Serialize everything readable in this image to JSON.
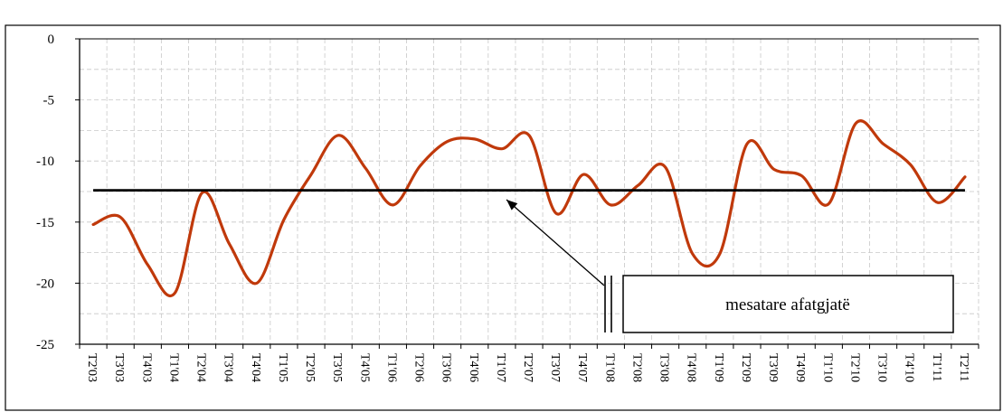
{
  "chart_data": {
    "type": "line",
    "title": "",
    "xlabel": "",
    "ylabel": "",
    "ylim": [
      -25,
      0
    ],
    "yticks": [
      0,
      -5,
      -10,
      -15,
      -20,
      -25
    ],
    "grid": true,
    "categories": [
      "T2'03",
      "T3'03",
      "T4'03",
      "T1'04",
      "T2'04",
      "T3'04",
      "T4'04",
      "T1'05",
      "T2'05",
      "T3'05",
      "T4'05",
      "T1'06",
      "T2'06",
      "T3'06",
      "T4'06",
      "T1'07",
      "T2'07",
      "T3'07",
      "T4'07",
      "T1'08",
      "T2'08",
      "T3'08",
      "T4'08",
      "T1'09",
      "T2'09",
      "T3'09",
      "T4'09",
      "T1'10",
      "T2'10",
      "T3'10",
      "T4'10",
      "T1'11",
      "T2'11"
    ],
    "series": [
      {
        "values": [
          -15.2,
          -14.6,
          -18.5,
          -20.8,
          -12.6,
          -16.8,
          -20.0,
          -14.8,
          -11.1,
          -7.9,
          -10.6,
          -13.6,
          -10.4,
          -8.4,
          -8.2,
          -9.0,
          -7.9,
          -14.3,
          -11.1,
          -13.6,
          -12.0,
          -10.5,
          -17.6,
          -17.6,
          -8.6,
          -10.7,
          -11.2,
          -13.5,
          -6.9,
          -8.6,
          -10.3,
          -13.4,
          -11.3
        ],
        "color": "#c0390b"
      },
      {
        "values": [
          -12.4,
          -12.4,
          -12.4,
          -12.4,
          -12.4,
          -12.4,
          -12.4,
          -12.4,
          -12.4,
          -12.4,
          -12.4,
          -12.4,
          -12.4,
          -12.4,
          -12.4,
          -12.4,
          -12.4,
          -12.4,
          -12.4,
          -12.4,
          -12.4,
          -12.4,
          -12.4,
          -12.4,
          -12.4,
          -12.4,
          -12.4,
          -12.4,
          -12.4,
          -12.4,
          -12.4,
          -12.4,
          -12.4
        ],
        "color": "#000000"
      }
    ],
    "annotations": [
      {
        "text": "mesatare afatgjatë",
        "points_to_category": "T1'07",
        "points_to_value": -12.4
      }
    ]
  }
}
